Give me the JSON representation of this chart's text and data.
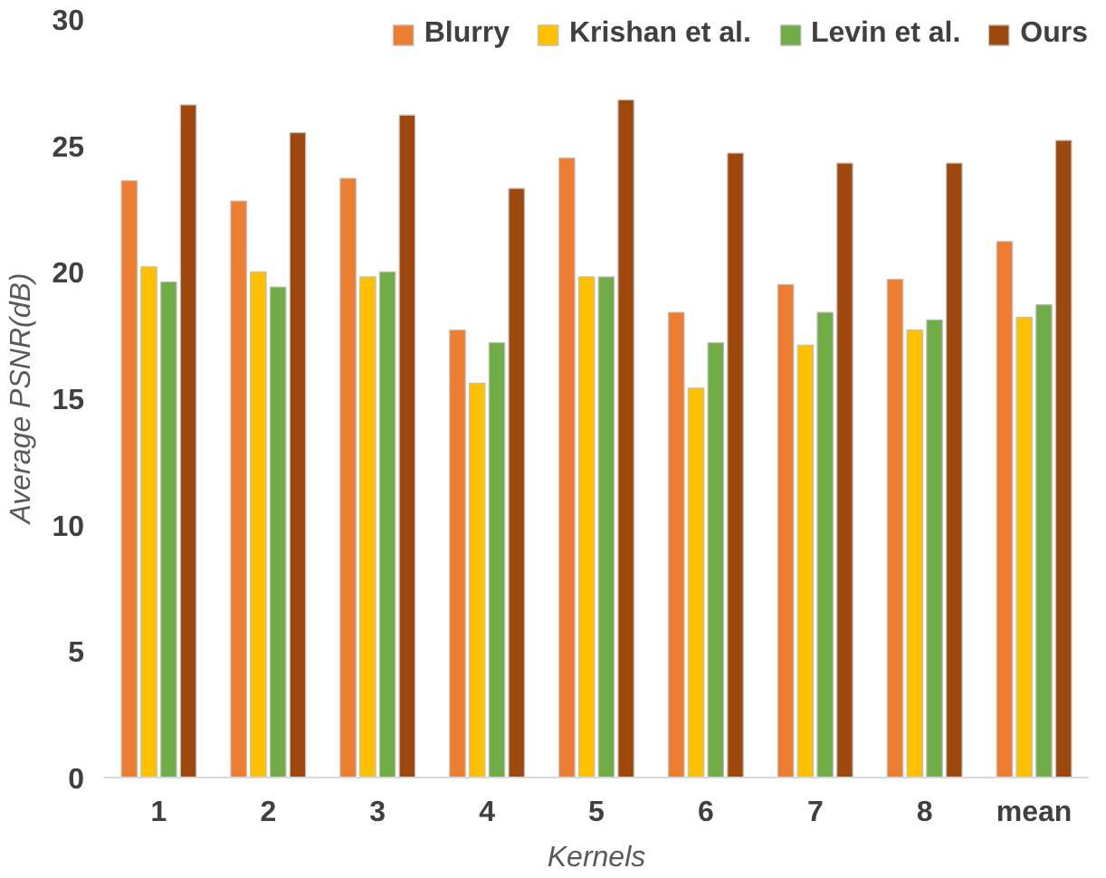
{
  "chart_data": {
    "type": "bar",
    "xlabel": "Kernels",
    "ylabel": "Average PSNR(dB)",
    "categories": [
      "1",
      "2",
      "3",
      "4",
      "5",
      "6",
      "7",
      "8",
      "mean"
    ],
    "series": [
      {
        "name": "Blurry",
        "color": "#ed7d31",
        "values": [
          23.6,
          22.8,
          23.7,
          17.7,
          24.5,
          18.4,
          19.5,
          19.7,
          21.2
        ]
      },
      {
        "name": "Krishan et al.",
        "color": "#ffc000",
        "values": [
          20.2,
          20.0,
          19.8,
          15.6,
          19.8,
          15.4,
          17.1,
          17.7,
          18.2
        ]
      },
      {
        "name": "Levin et al.",
        "color": "#70ad47",
        "values": [
          19.6,
          19.4,
          20.0,
          17.2,
          19.8,
          17.2,
          18.4,
          18.1,
          18.7
        ]
      },
      {
        "name": "Ours",
        "color": "#9e480e",
        "values": [
          26.6,
          25.5,
          26.2,
          23.3,
          26.8,
          24.7,
          24.3,
          24.3,
          25.2
        ]
      }
    ],
    "ylim": [
      0,
      30
    ],
    "yticks": [
      0,
      5,
      10,
      15,
      20,
      25,
      30
    ],
    "grid": false,
    "legend": "top"
  }
}
